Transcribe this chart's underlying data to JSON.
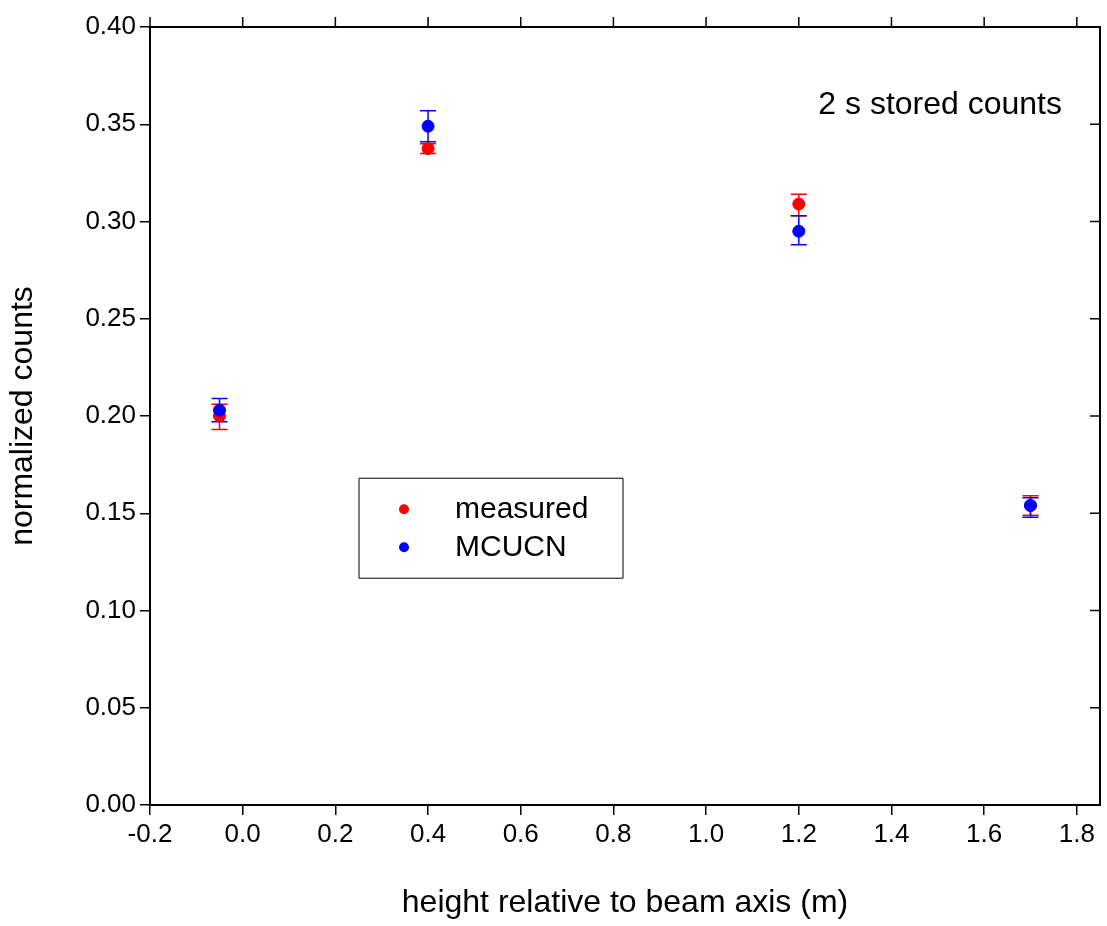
{
  "chart_data": {
    "type": "scatter",
    "xlabel": "height relative to beam axis (m)",
    "ylabel": "normalized counts",
    "xlim": [
      -0.2,
      1.85
    ],
    "xticks": [
      {
        "value": -0.2,
        "label": "-0.2"
      },
      {
        "value": 0,
        "label": "0.0"
      },
      {
        "value": 0.2,
        "label": "0.2"
      },
      {
        "value": 0.4,
        "label": "0.4"
      },
      {
        "value": 0.6,
        "label": "0.6"
      },
      {
        "value": 0.8,
        "label": "0.8"
      },
      {
        "value": 1,
        "label": "1.0"
      },
      {
        "value": 1.2,
        "label": "1.2"
      },
      {
        "value": 1.4,
        "label": "1.4"
      },
      {
        "value": 1.6,
        "label": "1.6"
      },
      {
        "value": 1.8,
        "label": "1.8"
      }
    ],
    "ylim": [
      0,
      0.4
    ],
    "yticks": [
      {
        "value": 0,
        "label": "0.00"
      },
      {
        "value": 0.05,
        "label": "0.05"
      },
      {
        "value": 0.1,
        "label": "0.10"
      },
      {
        "value": 0.15,
        "label": "0.15"
      },
      {
        "value": 0.2,
        "label": "0.20"
      },
      {
        "value": 0.25,
        "label": "0.25"
      },
      {
        "value": 0.3,
        "label": "0.30"
      },
      {
        "value": 0.35,
        "label": "0.35"
      },
      {
        "value": 0.4,
        "label": "0.40"
      }
    ],
    "x": [
      -0.05,
      0.4,
      1.2,
      1.7
    ],
    "series": [
      {
        "name": "measured",
        "color": "#ff0000",
        "values": [
          0.2,
          0.3375,
          0.309,
          0.154
        ],
        "errors": [
          [
            0.193,
            0.206
          ],
          [
            0.335,
            0.34
          ],
          [
            0.303,
            0.314
          ],
          [
            0.149,
            0.159
          ]
        ]
      },
      {
        "name": "MCUCN",
        "color": "#0000ff",
        "values": [
          0.203,
          0.349,
          0.295,
          0.154
        ],
        "errors": [
          [
            0.197,
            0.209
          ],
          [
            0.341,
            0.357
          ],
          [
            0.288,
            0.303
          ],
          [
            0.148,
            0.158
          ]
        ]
      }
    ],
    "annotations": [
      "2 s stored counts"
    ],
    "marker": "circle",
    "grid": false,
    "legend": "center"
  }
}
